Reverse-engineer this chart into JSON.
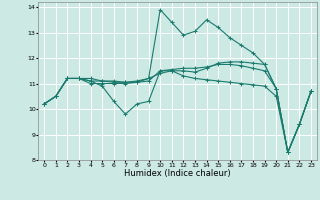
{
  "title": "",
  "xlabel": "Humidex (Indice chaleur)",
  "ylabel": "",
  "xlim": [
    -0.5,
    23.5
  ],
  "ylim": [
    8,
    14.2
  ],
  "yticks": [
    8,
    9,
    10,
    11,
    12,
    13,
    14
  ],
  "xticks": [
    0,
    1,
    2,
    3,
    4,
    5,
    6,
    7,
    8,
    9,
    10,
    11,
    12,
    13,
    14,
    15,
    16,
    17,
    18,
    19,
    20,
    21,
    22,
    23
  ],
  "background_color": "#cce9e4",
  "grid_color": "#ffffff",
  "line_color": "#1a7a6e",
  "lines": [
    [
      10.2,
      10.5,
      11.2,
      11.2,
      11.1,
      10.9,
      10.3,
      9.8,
      10.2,
      10.3,
      11.5,
      11.5,
      11.3,
      11.2,
      11.15,
      11.1,
      11.05,
      11.0,
      10.95,
      10.9,
      10.5,
      8.3,
      9.4,
      10.7
    ],
    [
      10.2,
      10.5,
      11.2,
      11.2,
      11.2,
      11.1,
      11.05,
      11.05,
      11.1,
      11.2,
      11.4,
      11.5,
      11.5,
      11.45,
      11.6,
      11.8,
      11.85,
      11.85,
      11.8,
      11.75,
      10.8,
      8.3,
      9.4,
      10.7
    ],
    [
      10.2,
      10.5,
      11.2,
      11.2,
      11.1,
      11.1,
      11.1,
      11.05,
      11.05,
      11.1,
      11.5,
      11.55,
      11.6,
      11.6,
      11.65,
      11.75,
      11.75,
      11.7,
      11.6,
      11.5,
      10.8,
      8.3,
      9.4,
      10.7
    ],
    [
      10.2,
      10.5,
      11.2,
      11.2,
      11.0,
      11.0,
      11.0,
      11.0,
      11.05,
      11.2,
      13.9,
      13.4,
      12.9,
      13.05,
      13.5,
      13.2,
      12.8,
      12.5,
      12.2,
      11.75,
      10.8,
      8.3,
      9.4,
      10.7
    ]
  ]
}
